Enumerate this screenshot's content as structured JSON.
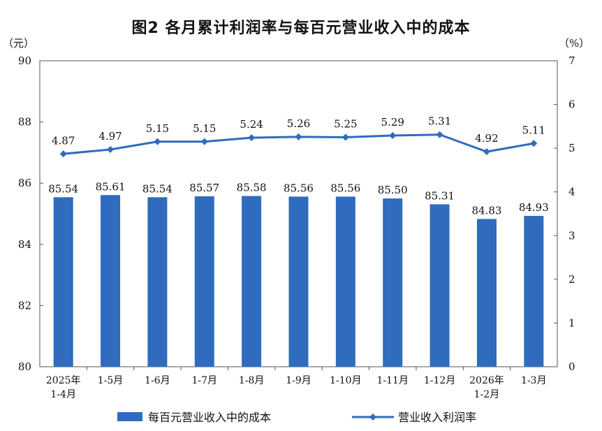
{
  "chart_data": {
    "type": "bar",
    "title": "图2  各月累计利润率与每百元营业收入中的成本",
    "left_unit": "（元）",
    "right_unit": "（%）",
    "categories": [
      [
        "2025年",
        "1-4月"
      ],
      [
        "1-5月"
      ],
      [
        "1-6月"
      ],
      [
        "1-7月"
      ],
      [
        "1-8月"
      ],
      [
        "1-9月"
      ],
      [
        "1-10月"
      ],
      [
        "1-11月"
      ],
      [
        "1-12月"
      ],
      [
        "2026年",
        "1-2月"
      ],
      [
        "1-3月"
      ]
    ],
    "series": [
      {
        "name": "每百元营业收入中的成本",
        "type": "bar",
        "axis": "left",
        "color": "#2f6cbd",
        "values": [
          85.54,
          85.61,
          85.54,
          85.57,
          85.58,
          85.56,
          85.56,
          85.5,
          85.31,
          84.83,
          84.93
        ],
        "labels": [
          "85.54",
          "85.61",
          "85.54",
          "85.57",
          "85.58",
          "85.56",
          "85.56",
          "85.50",
          "85.31",
          "84.83",
          "84.93"
        ]
      },
      {
        "name": "营业收入利润率",
        "type": "line",
        "axis": "right",
        "color": "#2f6cbd",
        "values": [
          4.87,
          4.97,
          5.15,
          5.15,
          5.24,
          5.26,
          5.25,
          5.29,
          5.31,
          4.92,
          5.11
        ],
        "labels": [
          "4.87",
          "4.97",
          "5.15",
          "5.15",
          "5.24",
          "5.26",
          "5.25",
          "5.29",
          "5.31",
          "4.92",
          "5.11"
        ]
      }
    ],
    "y_left": {
      "min": 80,
      "max": 90,
      "ticks": [
        "80",
        "82",
        "84",
        "86",
        "88",
        "90"
      ]
    },
    "y_right": {
      "min": 0,
      "max": 7,
      "ticks": [
        "0",
        "1",
        "2",
        "3",
        "4",
        "5",
        "6",
        "7"
      ]
    },
    "grid": false,
    "legend_position": "bottom"
  }
}
